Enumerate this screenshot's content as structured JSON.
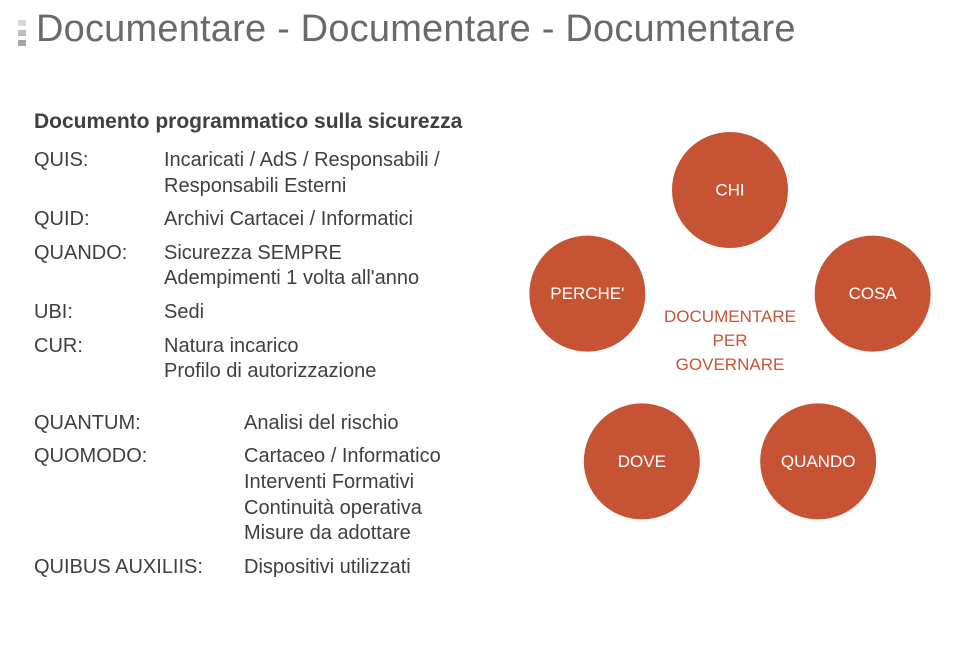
{
  "title": "Documentare - Documentare - Documentare",
  "subtitle": "Documento programmatico sulla sicurezza",
  "rows_top": [
    {
      "k": "QUIS:",
      "v": "Incaricati / AdS / Responsabili / Responsabili Esterni"
    },
    {
      "k": "QUID:",
      "v": "Archivi Cartacei / Informatici"
    },
    {
      "k": "QUANDO:",
      "v": "Sicurezza SEMPRE\nAdempimenti 1 volta all'anno"
    },
    {
      "k": "UBI:",
      "v": "Sedi"
    },
    {
      "k": "CUR:",
      "v": "Natura incarico\nProfilo di autorizzazione"
    }
  ],
  "rows_bottom": [
    {
      "k": "QUANTUM:",
      "v": "Analisi del rischio"
    },
    {
      "k": "QUOMODO:",
      "v": "Cartaceo / Informatico\nInterventi Formativi\nContinuità operativa\nMisure da adottare"
    },
    {
      "k": "QUIBUS AUXILIIS:",
      "v": "Dispositivi utilizzati"
    }
  ],
  "diagram": {
    "petal_color": "#c65434",
    "center_text_color": "#c65434",
    "petals": [
      {
        "label": "CHI",
        "angle_deg": -90
      },
      {
        "label": "COSA",
        "angle_deg": -18
      },
      {
        "label": "QUANDO",
        "angle_deg": 54
      },
      {
        "label": "DOVE",
        "angle_deg": 126
      },
      {
        "label": "PERCHE'",
        "angle_deg": 198
      }
    ],
    "petal_r": 58,
    "orbit_r": 150,
    "center": {
      "line1": "DOCUMENTARE",
      "line2": "PER",
      "line3": "GOVERNARE"
    }
  },
  "colors": {
    "title": "#6a6a6a",
    "body": "#3f3f3f",
    "accent": "#c65434",
    "bg": "#ffffff"
  }
}
